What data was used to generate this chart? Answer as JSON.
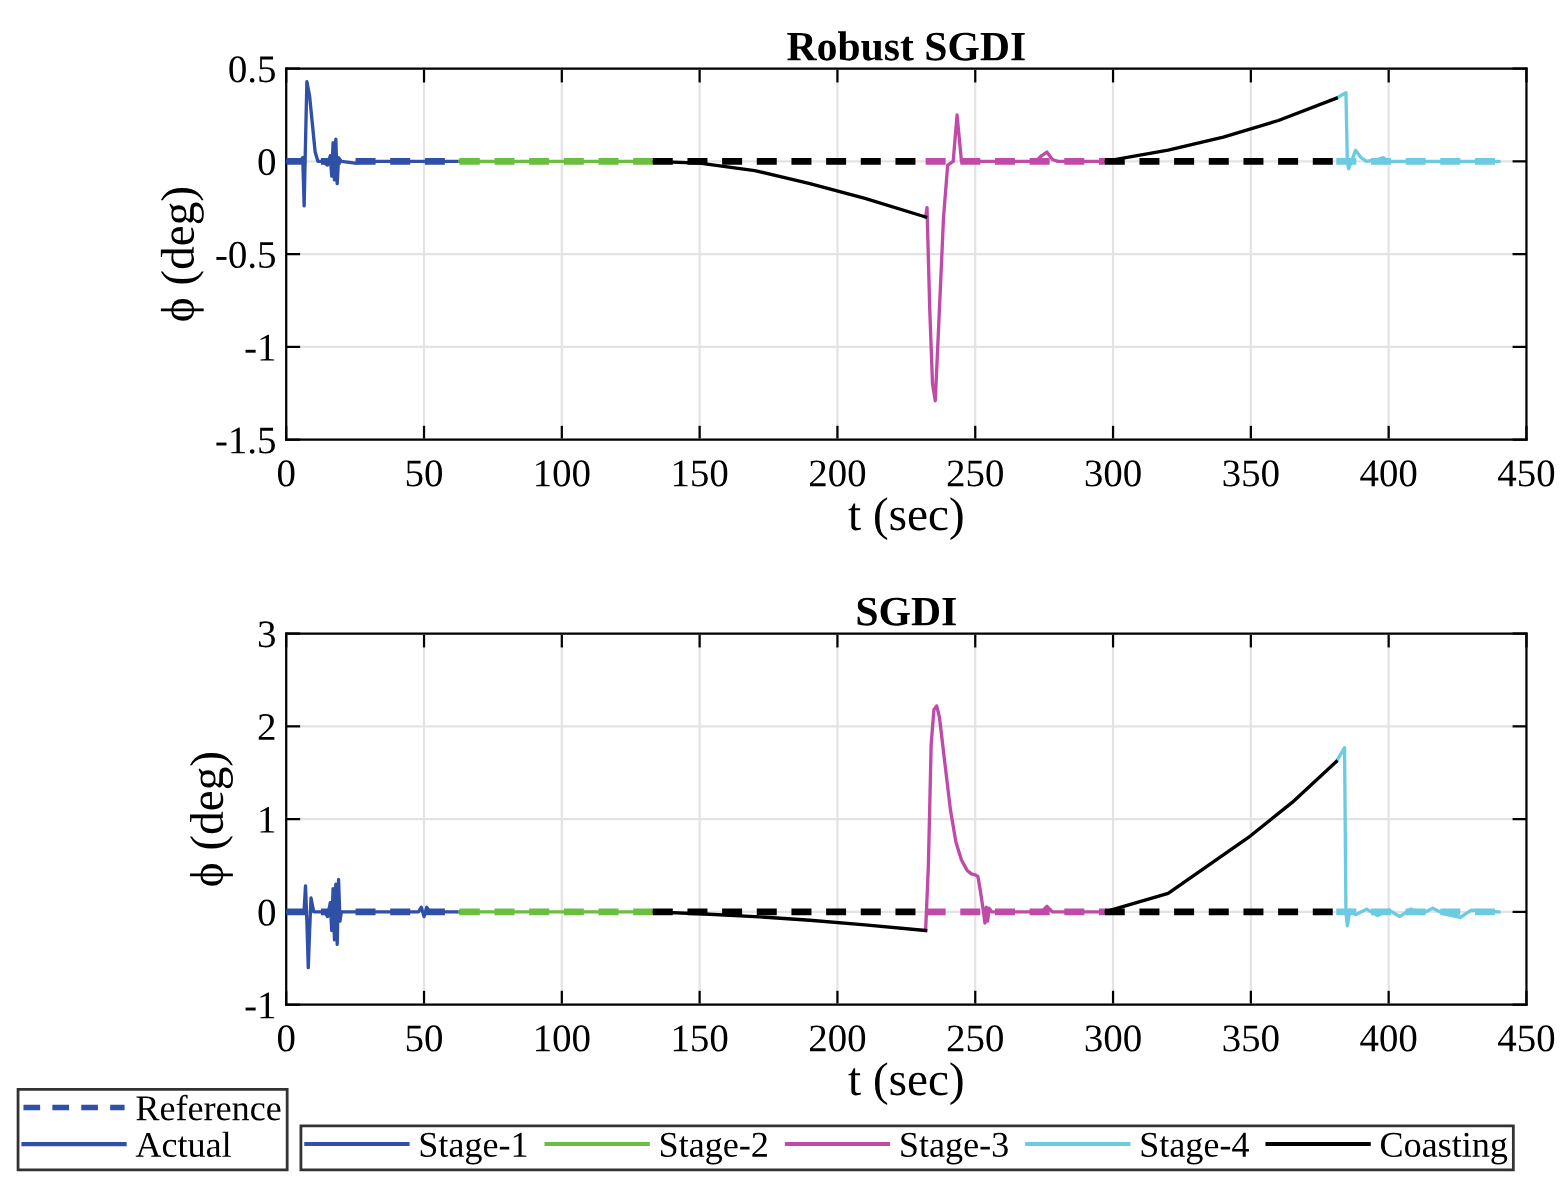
{
  "chart_data": [
    {
      "type": "line",
      "title": "Robust SGDI",
      "xlabel": "t (sec)",
      "ylabel": "ϕ (deg)",
      "xlim": [
        0,
        450
      ],
      "xticks": [
        0,
        50,
        100,
        150,
        200,
        250,
        300,
        350,
        400,
        450
      ],
      "ylim": [
        -1.5,
        0.5
      ],
      "yticks": [
        -1.5,
        -1,
        -0.5,
        0,
        0.5
      ],
      "grid": true,
      "legend": false,
      "series": [
        {
          "color": "#3050a8",
          "line_style": "solid",
          "x": [
            0,
            5,
            6,
            6.5,
            7,
            7.5,
            8.5,
            9.5,
            10.5,
            11.5,
            13,
            15,
            16,
            16.5,
            17,
            17.5,
            18,
            18.5,
            19,
            20,
            25,
            30,
            40,
            50,
            63
          ],
          "values": [
            0,
            0,
            0.02,
            -0.24,
            0.1,
            0.43,
            0.35,
            0.2,
            0.05,
            0,
            0,
            -0.02,
            0.03,
            -0.08,
            0.1,
            -0.1,
            0.12,
            -0.12,
            0.02,
            0,
            -0.01,
            0,
            0,
            0,
            0
          ]
        },
        {
          "color": "#6abf40",
          "line_style": "solid",
          "x": [
            63,
            100,
            133
          ],
          "values": [
            0,
            0,
            0
          ]
        },
        {
          "color": "#c04aa8",
          "line_style": "solid",
          "x": [
            232,
            232.5,
            233.5,
            234.5,
            235.5,
            237,
            238.5,
            240,
            242,
            243.4,
            245,
            247,
            260,
            272,
            274,
            276,
            278,
            280,
            297
          ],
          "values": [
            -0.3,
            -0.25,
            -0.8,
            -1.2,
            -1.29,
            -0.8,
            -0.3,
            -0.02,
            0,
            0.25,
            0,
            0,
            0,
            0,
            0.03,
            0.05,
            0.01,
            0,
            0
          ]
        },
        {
          "color": "#6ccbe0",
          "line_style": "solid",
          "x": [
            381,
            384.5,
            385,
            385.5,
            386.5,
            388,
            390,
            392,
            396,
            398,
            400,
            420,
            440
          ],
          "values": [
            0.34,
            0.37,
            0,
            -0.04,
            0,
            0.06,
            0.02,
            0,
            0.01,
            0.02,
            0,
            0,
            0
          ]
        },
        {
          "color": "#000000",
          "line_style": "solid",
          "x": [
            133,
            150,
            170,
            190,
            210,
            232,
            264,
            297,
            320,
            340,
            360,
            381
          ],
          "values": [
            0,
            -0.01,
            -0.05,
            -0.12,
            -0.2,
            -0.3,
            null,
            0,
            0.06,
            0.13,
            0.22,
            0.34
          ]
        },
        {
          "color": "#3050a8",
          "line_style": "dashed",
          "x": [
            0,
            63
          ],
          "values": [
            0,
            0
          ]
        },
        {
          "color": "#6abf40",
          "line_style": "dashed",
          "x": [
            63,
            133
          ],
          "values": [
            0,
            0
          ]
        },
        {
          "color": "#c04aa8",
          "line_style": "dashed",
          "x": [
            232,
            297
          ],
          "values": [
            0,
            0
          ]
        },
        {
          "color": "#6ccbe0",
          "line_style": "dashed",
          "x": [
            381,
            440
          ],
          "values": [
            0,
            0
          ]
        },
        {
          "color": "#000000",
          "line_style": "dashed",
          "x": [
            133,
            232,
            264,
            297,
            381
          ],
          "values": [
            0,
            0,
            null,
            0,
            0
          ]
        }
      ]
    },
    {
      "type": "line",
      "title": "SGDI",
      "xlabel": "t (sec)",
      "ylabel": "ϕ (deg)",
      "xlim": [
        0,
        450
      ],
      "xticks": [
        0,
        50,
        100,
        150,
        200,
        250,
        300,
        350,
        400,
        450
      ],
      "ylim": [
        -1,
        3
      ],
      "yticks": [
        -1,
        0,
        1,
        2,
        3
      ],
      "grid": true,
      "legend": "bottom",
      "annotations": [
        "Reference",
        "Actual"
      ],
      "series": [
        {
          "name": "Stage-1",
          "color": "#3050a8",
          "line_style": "solid",
          "x": [
            0,
            5,
            6.5,
            7,
            7.5,
            8,
            8.5,
            9,
            10,
            14,
            15,
            16,
            16.5,
            17,
            17.5,
            18,
            18.5,
            19,
            19.5,
            20,
            21,
            30,
            48,
            49,
            50,
            51,
            52,
            55,
            63
          ],
          "values": [
            0,
            0,
            0.02,
            0.28,
            -0.1,
            -0.6,
            -0.2,
            0.15,
            0,
            0,
            -0.05,
            0.1,
            -0.2,
            0.25,
            -0.3,
            0.3,
            -0.35,
            0.35,
            -0.1,
            0,
            0,
            0,
            0,
            0.05,
            -0.05,
            0.05,
            0,
            0,
            0
          ]
        },
        {
          "name": "Stage-2",
          "color": "#6abf40",
          "line_style": "solid",
          "x": [
            63,
            100,
            133
          ],
          "values": [
            0,
            0,
            0
          ]
        },
        {
          "name": "Stage-3",
          "color": "#c04aa8",
          "line_style": "solid",
          "x": [
            232,
            233,
            234,
            235,
            236,
            237,
            239,
            241,
            243,
            245,
            247,
            248.6,
            250,
            251,
            252,
            253,
            253.5,
            254,
            254.5,
            255,
            256,
            260,
            274,
            276,
            278,
            297
          ],
          "values": [
            -0.2,
            0.5,
            1.8,
            2.18,
            2.22,
            2.1,
            1.6,
            1.1,
            0.75,
            0.56,
            0.45,
            0.41,
            0.4,
            0.38,
            0.2,
            0,
            -0.12,
            0.05,
            -0.1,
            0.04,
            0,
            0,
            0,
            0.06,
            0,
            0
          ]
        },
        {
          "name": "Stage-4",
          "color": "#6ccbe0",
          "line_style": "solid",
          "x": [
            381,
            384,
            384.5,
            385,
            386,
            388,
            392,
            396,
            400,
            404,
            408,
            412,
            416,
            420,
            426,
            430,
            436,
            440
          ],
          "values": [
            1.62,
            1.77,
            0,
            -0.15,
            0.02,
            -0.03,
            0.03,
            -0.04,
            0.02,
            -0.05,
            0.03,
            -0.02,
            0.04,
            -0.02,
            -0.06,
            0.02,
            0.01,
            0
          ]
        },
        {
          "name": "Coasting",
          "color": "#000000",
          "line_style": "solid",
          "x": [
            133,
            150,
            170,
            190,
            210,
            232,
            264,
            297,
            320,
            349,
            365,
            381
          ],
          "values": [
            0,
            -0.02,
            -0.05,
            -0.09,
            -0.14,
            -0.2,
            null,
            0,
            0.2,
            0.8,
            1.18,
            1.62
          ]
        },
        {
          "color": "#3050a8",
          "line_style": "dashed",
          "x": [
            0,
            63
          ],
          "values": [
            0,
            0
          ]
        },
        {
          "color": "#6abf40",
          "line_style": "dashed",
          "x": [
            63,
            133
          ],
          "values": [
            0,
            0
          ]
        },
        {
          "color": "#c04aa8",
          "line_style": "dashed",
          "x": [
            232,
            297
          ],
          "values": [
            0,
            0
          ]
        },
        {
          "color": "#6ccbe0",
          "line_style": "dashed",
          "x": [
            381,
            440
          ],
          "values": [
            0,
            0
          ]
        },
        {
          "color": "#000000",
          "line_style": "dashed",
          "x": [
            133,
            232,
            264,
            297,
            381
          ],
          "values": [
            0,
            0,
            null,
            0,
            0
          ]
        }
      ]
    }
  ]
}
